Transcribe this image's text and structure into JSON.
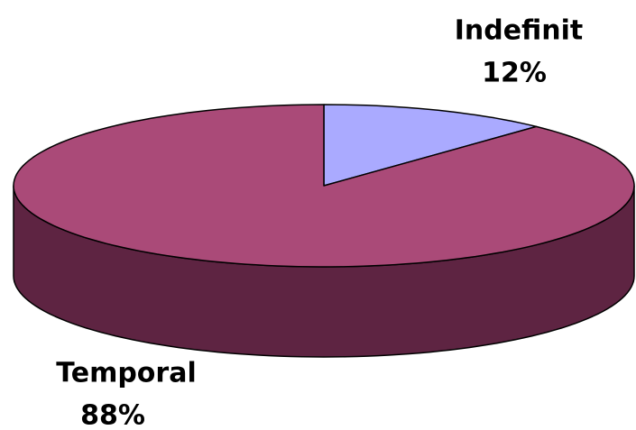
{
  "chart_data": {
    "type": "pie",
    "categories": [
      "Indefinit",
      "Temporal"
    ],
    "values": [
      12,
      88
    ],
    "value_labels": [
      "12%",
      "88%"
    ],
    "colors": [
      "#aaaaff",
      "#aa4a78"
    ],
    "side_colors": [
      "#5a5a99",
      "#5e2442"
    ]
  }
}
